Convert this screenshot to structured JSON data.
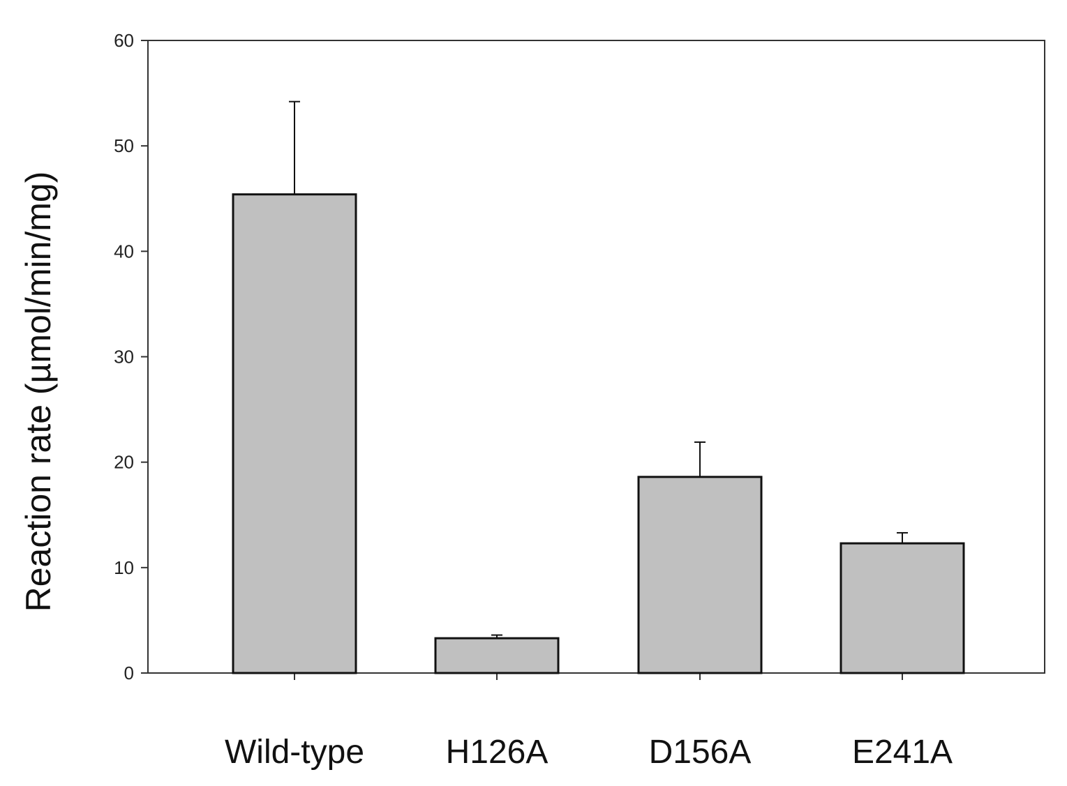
{
  "chart_data": {
    "type": "bar",
    "title": "",
    "xlabel": "",
    "ylabel": "Reaction rate (µmol/min/mg)",
    "categories": [
      "Wild-type",
      "H126A",
      "D156A",
      "E241A"
    ],
    "values": [
      45.4,
      3.3,
      18.6,
      12.3
    ],
    "error_plus": [
      8.8,
      0.3,
      3.3,
      1.0
    ],
    "ylim": [
      0,
      60
    ],
    "yticks": [
      0,
      10,
      20,
      30,
      40,
      50,
      60
    ],
    "ytick_labels": [
      "0",
      "10",
      "20",
      "30",
      "40",
      "50",
      "60"
    ],
    "grid": false,
    "bar_color": "#c0c0c0",
    "bar_edge_color": "#111111",
    "axis_color": "#333333"
  }
}
